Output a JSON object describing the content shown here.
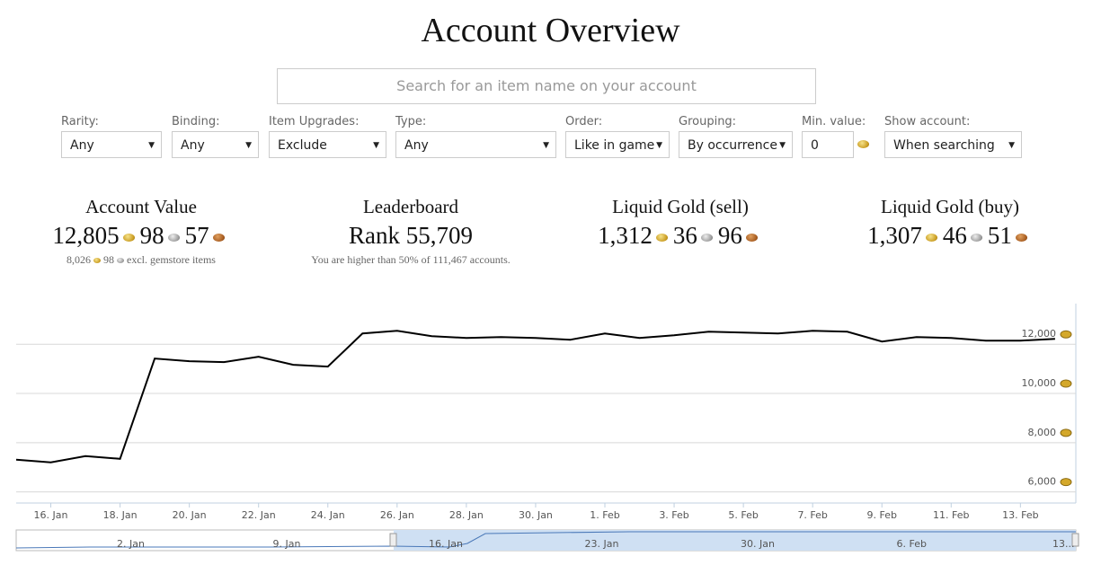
{
  "header": {
    "title": "Account Overview",
    "search_placeholder": "Search for an item name on your account"
  },
  "filters": [
    {
      "label": "Rarity:",
      "value": "Any"
    },
    {
      "label": "Binding:",
      "value": "Any"
    },
    {
      "label": "Item Upgrades:",
      "value": "Exclude"
    },
    {
      "label": "Type:",
      "value": "Any"
    },
    {
      "label": "Order:",
      "value": "Like in game"
    },
    {
      "label": "Grouping:",
      "value": "By occurrence"
    },
    {
      "label": "Min. value:",
      "value": "0"
    },
    {
      "label": "Show account:",
      "value": "When searching"
    }
  ],
  "stats": [
    {
      "title": "Account Value",
      "gold": "12,805",
      "silver": "98",
      "copper": "57",
      "note_gold": "8,026",
      "note_silver": "98",
      "note": "excl. gemstore items"
    },
    {
      "title": "Leaderboard",
      "value": "Rank 55,709",
      "note": "You are higher than 50% of 111,467 accounts."
    },
    {
      "title": "Liquid Gold (sell)",
      "gold": "1,312",
      "silver": "36",
      "copper": "96"
    },
    {
      "title": "Liquid Gold (buy)",
      "gold": "1,307",
      "silver": "46",
      "copper": "51"
    }
  ],
  "chart_data": {
    "type": "line",
    "grid": true,
    "x": [
      15,
      16,
      17,
      18,
      19,
      20,
      21,
      22,
      23,
      24,
      25,
      26,
      27,
      28,
      29,
      30,
      31,
      32,
      33,
      34,
      35,
      36,
      37,
      38,
      39,
      40,
      41,
      42,
      43,
      44,
      45
    ],
    "series": [
      {
        "color": "#000000",
        "values": [
          7309,
          7200,
          7455,
          7345,
          11418,
          11309,
          11273,
          11491,
          11164,
          11091,
          12436,
          12545,
          12327,
          12255,
          12291,
          12255,
          12182,
          12436,
          12255,
          12364,
          12509,
          12473,
          12436,
          12545,
          12509,
          12109,
          12291,
          12255,
          12145,
          12145,
          12218
        ]
      }
    ],
    "xlim": [
      15,
      45.6
    ],
    "xticks": [
      {
        "value": 16,
        "label": "16. Jan"
      },
      {
        "value": 18,
        "label": "18. Jan"
      },
      {
        "value": 20,
        "label": "20. Jan"
      },
      {
        "value": 22,
        "label": "22. Jan"
      },
      {
        "value": 24,
        "label": "24. Jan"
      },
      {
        "value": 26,
        "label": "26. Jan"
      },
      {
        "value": 28,
        "label": "28. Jan"
      },
      {
        "value": 30,
        "label": "30. Jan"
      },
      {
        "value": 32,
        "label": "1. Feb"
      },
      {
        "value": 34,
        "label": "3. Feb"
      },
      {
        "value": 36,
        "label": "5. Feb"
      },
      {
        "value": 38,
        "label": "7. Feb"
      },
      {
        "value": 40,
        "label": "9. Feb"
      },
      {
        "value": 42,
        "label": "11. Feb"
      },
      {
        "value": 44,
        "label": "13. Feb"
      }
    ],
    "ylim": [
      5550,
      13650
    ],
    "yticks": [
      {
        "value": 6000,
        "label": "6,000"
      },
      {
        "value": 8000,
        "label": "8,000"
      },
      {
        "value": 10000,
        "label": "10,000"
      },
      {
        "value": 12000,
        "label": "12,000"
      }
    ]
  },
  "navigator": {
    "labels": [
      "2. Jan",
      "9. Jan",
      "16. Jan",
      "23. Jan",
      "30. Jan",
      "6. Feb",
      "13..."
    ]
  }
}
